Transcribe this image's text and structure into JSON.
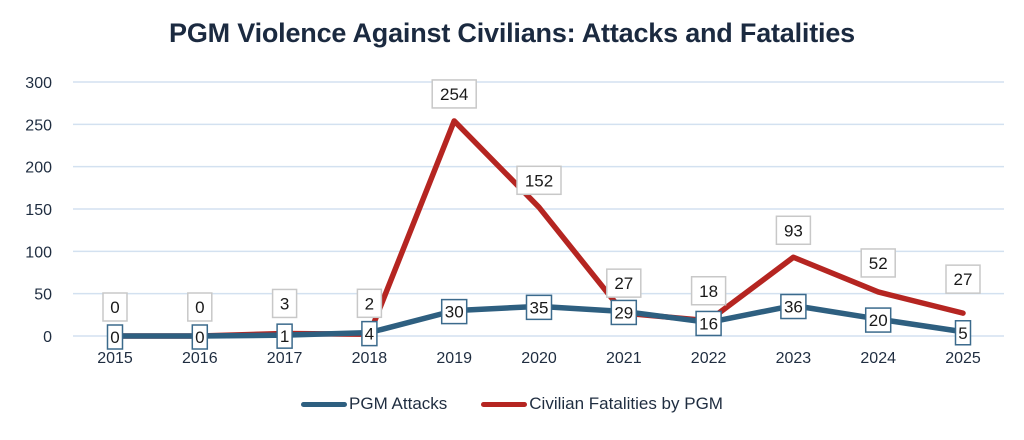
{
  "chart_data": {
    "type": "line",
    "title": "PGM Violence Against Civilians: Attacks and Fatalities",
    "xlabel": "",
    "ylabel": "",
    "categories": [
      "2015",
      "2016",
      "2017",
      "2018",
      "2019",
      "2020",
      "2021",
      "2022",
      "2023",
      "2024",
      "2025"
    ],
    "ylim": [
      0,
      300
    ],
    "yticks": [
      0,
      50,
      100,
      150,
      200,
      250,
      300
    ],
    "ytick_labels": [
      "0",
      "50",
      "100",
      "150",
      "200",
      "250",
      "300"
    ],
    "grid": true,
    "legend_position": "bottom",
    "series": [
      {
        "name": "PGM Attacks",
        "color": "#2e5f80",
        "values": [
          0,
          0,
          1,
          4,
          30,
          35,
          29,
          16,
          36,
          20,
          5
        ],
        "labels": [
          "0",
          "0",
          "1",
          "4",
          "30",
          "35",
          "29",
          "16",
          "36",
          "20",
          "5"
        ]
      },
      {
        "name": "Civilian Fatalities by PGM",
        "color": "#b52521",
        "values": [
          0,
          0,
          3,
          2,
          254,
          152,
          27,
          18,
          93,
          52,
          27
        ],
        "labels": [
          "0",
          "0",
          "3",
          "2",
          "254",
          "152",
          "27",
          "18",
          "93",
          "52",
          "27"
        ]
      }
    ]
  }
}
